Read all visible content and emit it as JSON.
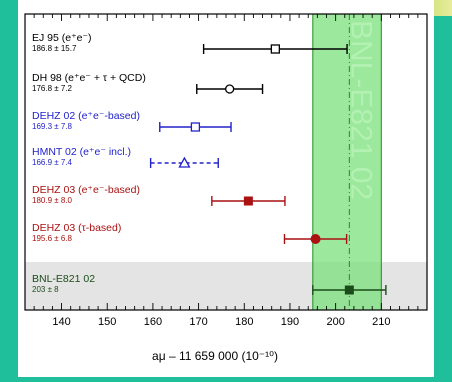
{
  "chart_data": {
    "type": "scatter",
    "title": "",
    "xlabel": "aμ – 11 659 000   (10⁻¹⁰)",
    "ylabel": "",
    "xlim": [
      132,
      220
    ],
    "x_ticks": [
      140,
      150,
      160,
      170,
      180,
      190,
      200,
      210
    ],
    "grid": false,
    "band_label": "BNL-E821 02",
    "band": {
      "center": 203,
      "inner": [
        195,
        210
      ],
      "outer": [
        195,
        210
      ]
    },
    "entries": [
      {
        "label": "EJ 95 (e⁺e⁻)",
        "value_text": "186.8 ± 15.7",
        "value": 186.8,
        "error": 15.7,
        "color": "#000000",
        "marker": "open-square"
      },
      {
        "label": "DH 98 (e⁺e⁻ + τ + QCD)",
        "value_text": "176.8 ± 7.2",
        "value": 176.8,
        "error": 7.2,
        "color": "#000000",
        "marker": "open-circle"
      },
      {
        "label": "DEHZ 02 (e⁺e⁻-based)",
        "value_text": "169.3 ± 7.8",
        "value": 169.3,
        "error": 7.8,
        "color": "#2222cc",
        "marker": "open-square"
      },
      {
        "label": "HMNT 02 (e⁺e⁻ incl.)",
        "value_text": "166.9 ± 7.4",
        "value": 166.9,
        "error": 7.4,
        "color": "#2222cc",
        "marker": "open-triangle",
        "dashed": true
      },
      {
        "label": "DEHZ 03 (e⁺e⁻-based)",
        "value_text": "180.9 ± 8.0",
        "value": 180.9,
        "error": 8.0,
        "color": "#aa1111",
        "marker": "filled-square"
      },
      {
        "label": "DEHZ 03 (τ-based)",
        "value_text": "195.6 ± 6.8",
        "value": 195.6,
        "error": 6.8,
        "color": "#aa1111",
        "marker": "filled-circle"
      },
      {
        "label": "BNL-E821 02",
        "value_text": "203 ± 8",
        "value": 203,
        "error": 8,
        "color": "#1a4d1a",
        "marker": "filled-square",
        "shaded": true
      }
    ]
  }
}
